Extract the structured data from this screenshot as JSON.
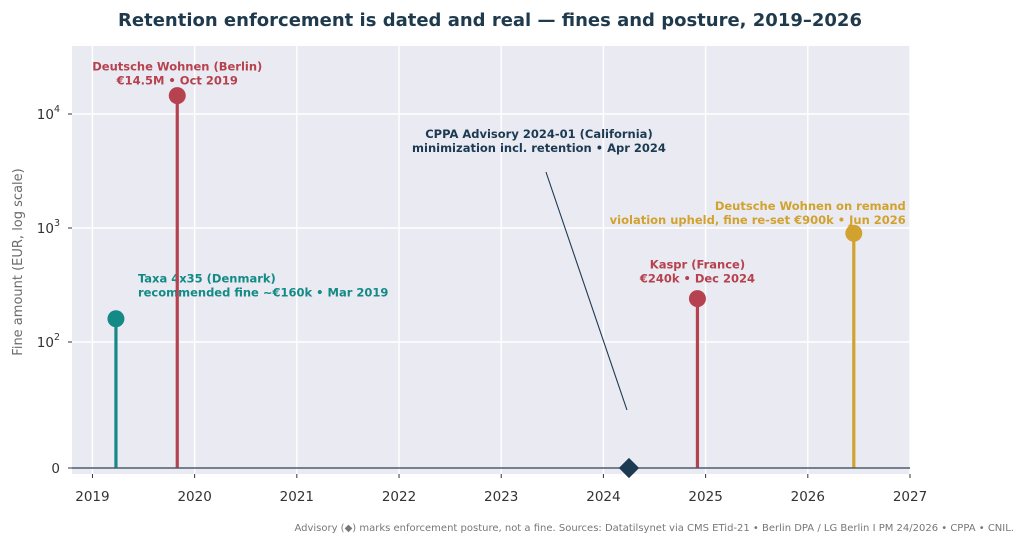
{
  "chart_data": {
    "type": "scatter",
    "title": "Retention enforcement is dated and real — fines and posture, 2019–2026",
    "xlabel": "",
    "ylabel": "Fine amount (EUR, log scale)",
    "xlim": [
      2018.8,
      2027
    ],
    "x_ticks": [
      "2019",
      "2020",
      "2021",
      "2022",
      "2023",
      "2024",
      "2025",
      "2026",
      "2027"
    ],
    "y_scale": "symlog",
    "y_ticks": [
      {
        "value": 10000,
        "base": "10",
        "exp": "4"
      },
      {
        "value": 1000,
        "base": "10",
        "exp": "3"
      },
      {
        "value": 100,
        "base": "10",
        "exp": "2"
      },
      {
        "value": 0,
        "base": "0",
        "exp": ""
      }
    ],
    "grid": true,
    "events": [
      {
        "name": "Taxa 4x35 (Denmark)",
        "x": 2019.23,
        "y": 160,
        "kind": "fine",
        "color": "#138a86",
        "label": [
          "Taxa 4x35 (Denmark)",
          "recommended fine ~€160k  •  Mar 2019"
        ]
      },
      {
        "name": "Deutsche Wohnen (Berlin)",
        "x": 2019.83,
        "y": 14500,
        "kind": "fine",
        "color": "#b5424e",
        "label": [
          "Deutsche Wohnen (Berlin)",
          "€14.5M  •  Oct 2019"
        ]
      },
      {
        "name": "CPPA Advisory 2024-01 (California)",
        "x": 2024.25,
        "y": 0,
        "kind": "advisory",
        "color": "#1c3a52",
        "label": [
          "CPPA Advisory 2024-01 (California)",
          "minimization incl. retention  •  Apr 2024"
        ]
      },
      {
        "name": "Kaspr (France)",
        "x": 2024.92,
        "y": 240,
        "kind": "fine",
        "color": "#b5424e",
        "label": [
          "Kaspr (France)",
          "€240k  •  Dec 2024"
        ]
      },
      {
        "name": "Deutsche Wohnen on remand",
        "x": 2026.45,
        "y": 900,
        "kind": "fine",
        "color": "#d1a22e",
        "label": [
          "Deutsche Wohnen on remand",
          "violation upheld, fine re-set €900k  •  Jun 2026"
        ]
      }
    ],
    "footnote": "Advisory (◆) marks enforcement posture, not a fine. Sources: Datatilsynet via CMS ETid-21  •  Berlin DPA / LG Berlin I PM 24/2026  •  CPPA  •  CNIL."
  },
  "colors": {
    "plot_background": "#eaeaf2",
    "grid": "#ffffff",
    "baseline": "#4a5a6a",
    "title": "#1f3a4d"
  }
}
